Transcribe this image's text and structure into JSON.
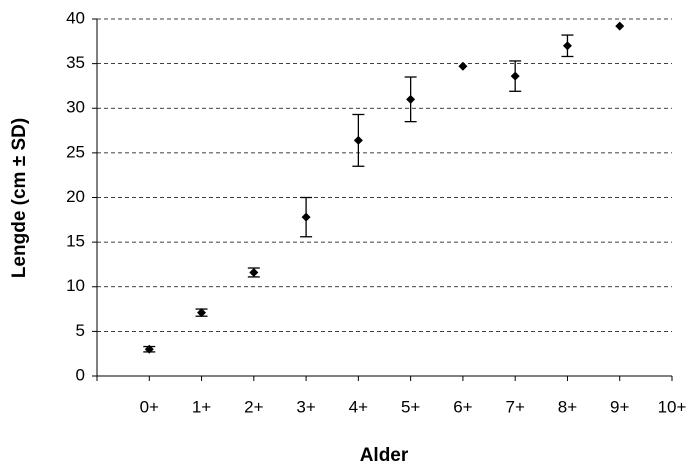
{
  "chart_data": {
    "type": "scatter",
    "x_label": "Alder",
    "y_label": "Lengde (cm ± SD)",
    "x": [
      0,
      1,
      2,
      3,
      4,
      5,
      6,
      7,
      8,
      9
    ],
    "values": [
      3.0,
      7.1,
      11.6,
      17.8,
      26.4,
      31.0,
      34.7,
      33.6,
      37.0,
      39.2
    ],
    "errors": [
      0.3,
      0.4,
      0.5,
      2.2,
      2.9,
      2.5,
      0,
      1.7,
      1.2,
      0
    ],
    "color": "#000000",
    "xlim": [
      -1,
      10
    ],
    "xticks": [
      {
        "value": 0,
        "label": "0+"
      },
      {
        "value": 1,
        "label": "1+"
      },
      {
        "value": 2,
        "label": "2+"
      },
      {
        "value": 3,
        "label": "3+"
      },
      {
        "value": 4,
        "label": "4+"
      },
      {
        "value": 5,
        "label": "5+"
      },
      {
        "value": 6,
        "label": "6+"
      },
      {
        "value": 7,
        "label": "7+"
      },
      {
        "value": 8,
        "label": "8+"
      },
      {
        "value": 9,
        "label": "9+"
      },
      {
        "value": 10,
        "label": "10+"
      }
    ],
    "ylim": [
      0,
      40
    ],
    "yticks": [
      0,
      5,
      10,
      15,
      20,
      25,
      30,
      35,
      40
    ],
    "grid": true
  }
}
